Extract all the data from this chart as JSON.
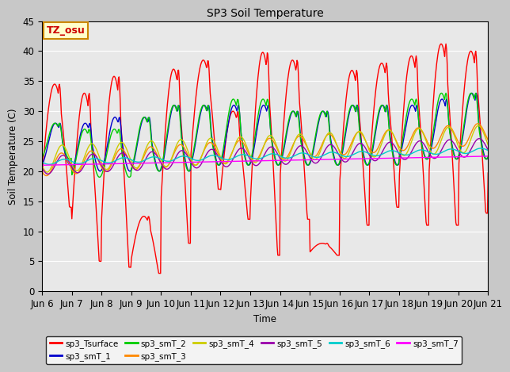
{
  "title": "SP3 Soil Temperature",
  "xlabel": "Time",
  "ylabel": "Soil Temperature (C)",
  "ylim": [
    0,
    45
  ],
  "annotation_text": "TZ_osu",
  "annotation_color": "#cc0000",
  "annotation_bg": "#ffffcc",
  "annotation_border": "#cc8800",
  "plot_bg_color": "#e8e8e8",
  "series_colors": {
    "sp3_Tsurface": "#ff0000",
    "sp3_smT_1": "#0000cc",
    "sp3_smT_2": "#00cc00",
    "sp3_smT_3": "#ff8800",
    "sp3_smT_4": "#cccc00",
    "sp3_smT_5": "#9900aa",
    "sp3_smT_6": "#00cccc",
    "sp3_smT_7": "#ff00ff"
  },
  "xtick_labels": [
    "Jun 6",
    "Jun 7",
    "Jun 8",
    "Jun 9",
    "Jun 10",
    "Jun 11",
    "Jun 12",
    "Jun 13",
    "Jun 14",
    "Jun 15",
    "Jun 16",
    "Jun 17",
    "Jun 18",
    "Jun 19",
    "Jun 20",
    "Jun 21"
  ],
  "grid_color": "#ffffff",
  "font_size": 8.5
}
